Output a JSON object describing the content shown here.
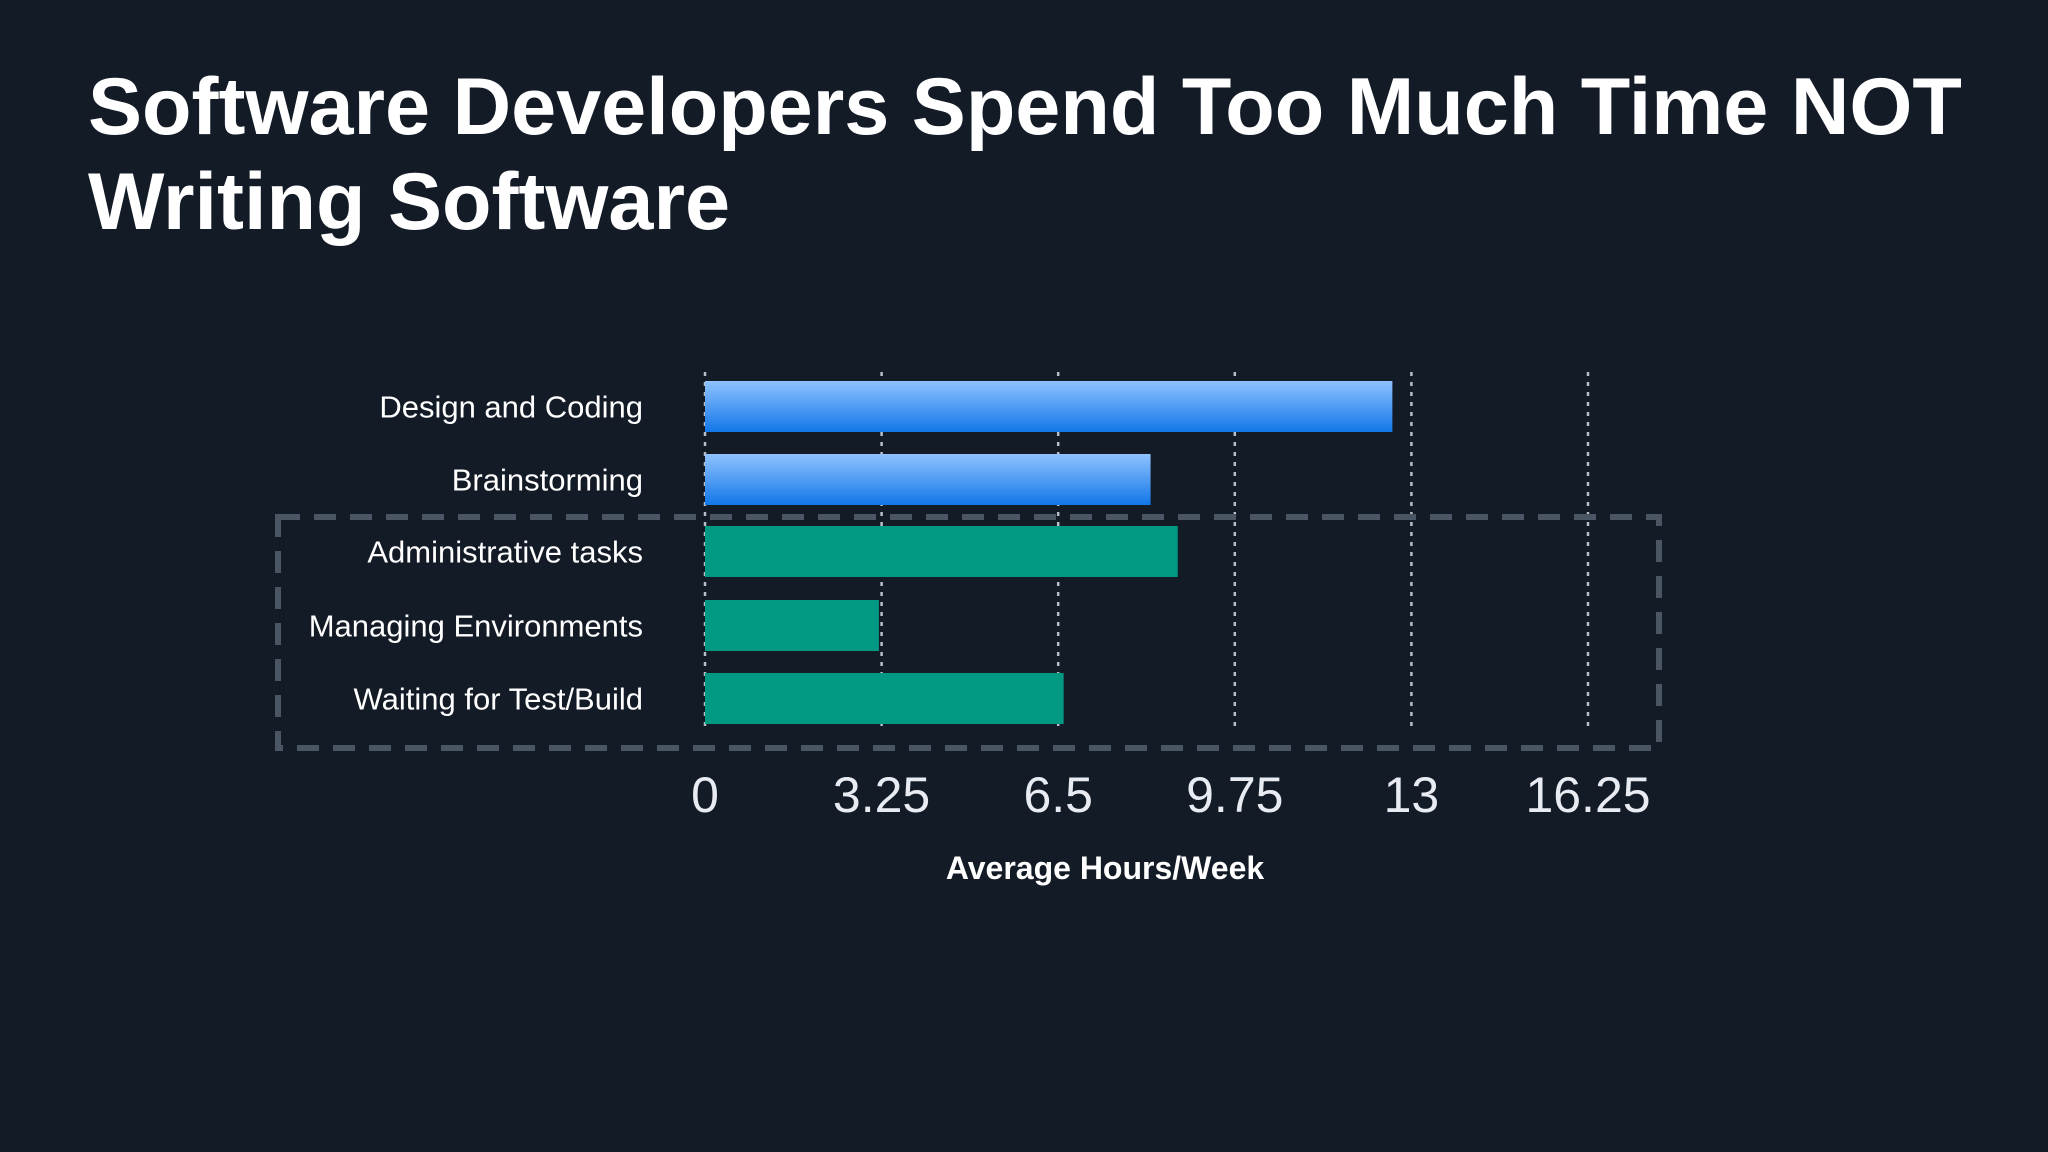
{
  "slide": {
    "title": "Software Developers Spend Too Much Time NOT Writing Software"
  },
  "chart_data": {
    "type": "bar",
    "orientation": "horizontal",
    "categories": [
      "Design and Coding",
      "Brainstorming",
      "Administrative tasks",
      "Managing Environments",
      "Waiting for Test/Build"
    ],
    "values": [
      12.65,
      8.2,
      8.7,
      3.2,
      6.6
    ],
    "xlabel": "Average Hours/Week",
    "ylabel": "",
    "xlim": [
      0,
      16.25
    ],
    "x_ticks": [
      "0",
      "3.25",
      "6.5",
      "9.75",
      "13",
      "16.25"
    ],
    "grid": "vertical dotted",
    "highlight": {
      "style": "dashed box",
      "categories": [
        "Administrative tasks",
        "Managing Environments",
        "Waiting for Test/Build"
      ]
    },
    "colors": {
      "normal_top": "#8ec2ff",
      "normal_bottom": "#1277e8",
      "highlight": "#029983",
      "grid": "#c9d0da",
      "highlight_box": "#4a5663"
    }
  }
}
